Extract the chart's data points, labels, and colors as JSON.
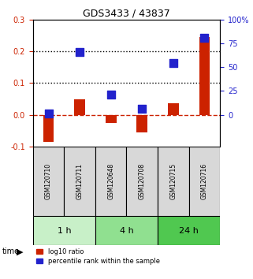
{
  "title": "GDS3433 / 43837",
  "samples": [
    "GSM120710",
    "GSM120711",
    "GSM120648",
    "GSM120708",
    "GSM120715",
    "GSM120716"
  ],
  "log10_ratio": [
    -0.085,
    0.048,
    -0.025,
    -0.055,
    0.037,
    0.245
  ],
  "percentile_rank": [
    0.005,
    0.198,
    0.063,
    0.018,
    0.163,
    0.242
  ],
  "time_groups": [
    {
      "label": "1 h",
      "indices": [
        0,
        1
      ],
      "color": "#c8f0c8"
    },
    {
      "label": "4 h",
      "indices": [
        2,
        3
      ],
      "color": "#90e090"
    },
    {
      "label": "24 h",
      "indices": [
        4,
        5
      ],
      "color": "#50c850"
    }
  ],
  "ylim": [
    -0.1,
    0.3
  ],
  "yticks_left": [
    -0.1,
    0.0,
    0.1,
    0.2,
    0.3
  ],
  "yticks_right_labels": [
    "0",
    "25",
    "50",
    "75",
    "100%"
  ],
  "dotted_lines": [
    0.1,
    0.2
  ],
  "bar_color": "#cc2200",
  "dot_color": "#2222cc",
  "zero_line_color": "#cc2200",
  "background_color": "#ffffff",
  "plot_bg": "#ffffff",
  "legend_red_label": "log10 ratio",
  "legend_blue_label": "percentile rank within the sample"
}
